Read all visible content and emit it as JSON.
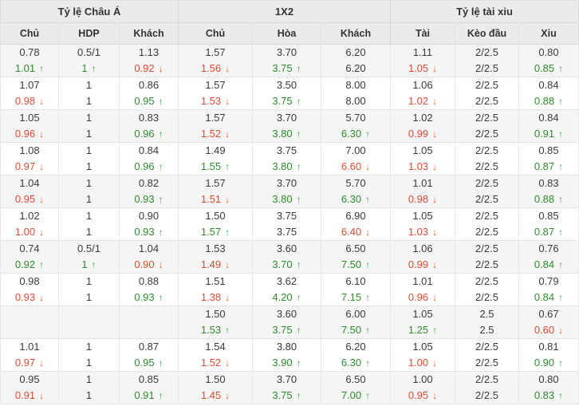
{
  "header": {
    "groups": [
      {
        "label": "Tỷ lệ Châu Á"
      },
      {
        "label": "1X2"
      },
      {
        "label": "Tỷ lệ tài xiu"
      }
    ],
    "columns": [
      "Chủ",
      "HDP",
      "Khách",
      "Chủ",
      "Hòa",
      "Khách",
      "Tài",
      "Kèo đầu",
      "Xiu"
    ]
  },
  "icons": {
    "up_arrow": "↑",
    "down_arrow": "↓"
  },
  "colors": {
    "up_green": "#2e8b2e",
    "down_red": "#e04a33",
    "header_bg": "#ebebeb",
    "stripe_bg": "#f5f5f5",
    "border": "#d9d9d9",
    "text": "#3a3a3a"
  },
  "rows": [
    {
      "cells": [
        {
          "top": "0.78",
          "bottom": "1.01",
          "change": "up"
        },
        {
          "top": "0.5/1",
          "bottom": "1",
          "change": "up"
        },
        {
          "top": "1.13",
          "bottom": "0.92",
          "change": "down"
        },
        {
          "top": "1.57",
          "bottom": "1.56",
          "change": "down"
        },
        {
          "top": "3.70",
          "bottom": "3.75",
          "change": "up"
        },
        {
          "top": "6.20",
          "bottom": "6.20",
          "change": "none"
        },
        {
          "top": "1.11",
          "bottom": "1.05",
          "change": "down"
        },
        {
          "top": "2/2.5",
          "bottom": "2/2.5",
          "change": "none"
        },
        {
          "top": "0.80",
          "bottom": "0.85",
          "change": "up"
        }
      ]
    },
    {
      "cells": [
        {
          "top": "1.07",
          "bottom": "0.98",
          "change": "down"
        },
        {
          "top": "1",
          "bottom": "1",
          "change": "none"
        },
        {
          "top": "0.86",
          "bottom": "0.95",
          "change": "up"
        },
        {
          "top": "1.57",
          "bottom": "1.53",
          "change": "down"
        },
        {
          "top": "3.50",
          "bottom": "3.75",
          "change": "up"
        },
        {
          "top": "8.00",
          "bottom": "8.00",
          "change": "none"
        },
        {
          "top": "1.06",
          "bottom": "1.02",
          "change": "down"
        },
        {
          "top": "2/2.5",
          "bottom": "2/2.5",
          "change": "none"
        },
        {
          "top": "0.84",
          "bottom": "0.88",
          "change": "up"
        }
      ]
    },
    {
      "cells": [
        {
          "top": "1.05",
          "bottom": "0.96",
          "change": "down"
        },
        {
          "top": "1",
          "bottom": "1",
          "change": "none"
        },
        {
          "top": "0.83",
          "bottom": "0.96",
          "change": "up"
        },
        {
          "top": "1.57",
          "bottom": "1.52",
          "change": "down"
        },
        {
          "top": "3.70",
          "bottom": "3.80",
          "change": "up"
        },
        {
          "top": "5.70",
          "bottom": "6.30",
          "change": "up"
        },
        {
          "top": "1.02",
          "bottom": "0.99",
          "change": "down"
        },
        {
          "top": "2/2.5",
          "bottom": "2/2.5",
          "change": "none"
        },
        {
          "top": "0.84",
          "bottom": "0.91",
          "change": "up"
        }
      ]
    },
    {
      "cells": [
        {
          "top": "1.08",
          "bottom": "0.97",
          "change": "down"
        },
        {
          "top": "1",
          "bottom": "1",
          "change": "none"
        },
        {
          "top": "0.84",
          "bottom": "0.96",
          "change": "up"
        },
        {
          "top": "1.49",
          "bottom": "1.55",
          "change": "up"
        },
        {
          "top": "3.75",
          "bottom": "3.80",
          "change": "up"
        },
        {
          "top": "7.00",
          "bottom": "6.60",
          "change": "down"
        },
        {
          "top": "1.05",
          "bottom": "1.03",
          "change": "down"
        },
        {
          "top": "2/2.5",
          "bottom": "2/2.5",
          "change": "none"
        },
        {
          "top": "0.85",
          "bottom": "0.87",
          "change": "up"
        }
      ]
    },
    {
      "cells": [
        {
          "top": "1.04",
          "bottom": "0.95",
          "change": "down"
        },
        {
          "top": "1",
          "bottom": "1",
          "change": "none"
        },
        {
          "top": "0.82",
          "bottom": "0.93",
          "change": "up"
        },
        {
          "top": "1.57",
          "bottom": "1.51",
          "change": "down"
        },
        {
          "top": "3.70",
          "bottom": "3.80",
          "change": "up"
        },
        {
          "top": "5.70",
          "bottom": "6.30",
          "change": "up"
        },
        {
          "top": "1.01",
          "bottom": "0.98",
          "change": "down"
        },
        {
          "top": "2/2.5",
          "bottom": "2/2.5",
          "change": "none"
        },
        {
          "top": "0.83",
          "bottom": "0.88",
          "change": "up"
        }
      ]
    },
    {
      "cells": [
        {
          "top": "1.02",
          "bottom": "1.00",
          "change": "down"
        },
        {
          "top": "1",
          "bottom": "1",
          "change": "none"
        },
        {
          "top": "0.90",
          "bottom": "0.93",
          "change": "up"
        },
        {
          "top": "1.50",
          "bottom": "1.57",
          "change": "up"
        },
        {
          "top": "3.75",
          "bottom": "3.75",
          "change": "none"
        },
        {
          "top": "6.90",
          "bottom": "6.40",
          "change": "down"
        },
        {
          "top": "1.05",
          "bottom": "1.03",
          "change": "down"
        },
        {
          "top": "2/2.5",
          "bottom": "2/2.5",
          "change": "none"
        },
        {
          "top": "0.85",
          "bottom": "0.87",
          "change": "up"
        }
      ]
    },
    {
      "cells": [
        {
          "top": "0.74",
          "bottom": "0.92",
          "change": "up"
        },
        {
          "top": "0.5/1",
          "bottom": "1",
          "change": "up"
        },
        {
          "top": "1.04",
          "bottom": "0.90",
          "change": "down"
        },
        {
          "top": "1.53",
          "bottom": "1.49",
          "change": "down"
        },
        {
          "top": "3.60",
          "bottom": "3.70",
          "change": "up"
        },
        {
          "top": "6.50",
          "bottom": "7.50",
          "change": "up"
        },
        {
          "top": "1.06",
          "bottom": "0.99",
          "change": "down"
        },
        {
          "top": "2/2.5",
          "bottom": "2/2.5",
          "change": "none"
        },
        {
          "top": "0.76",
          "bottom": "0.84",
          "change": "up"
        }
      ]
    },
    {
      "cells": [
        {
          "top": "0.98",
          "bottom": "0.93",
          "change": "down"
        },
        {
          "top": "1",
          "bottom": "1",
          "change": "none"
        },
        {
          "top": "0.88",
          "bottom": "0.93",
          "change": "up"
        },
        {
          "top": "1.51",
          "bottom": "1.38",
          "change": "down"
        },
        {
          "top": "3.62",
          "bottom": "4.20",
          "change": "up"
        },
        {
          "top": "6.10",
          "bottom": "7.15",
          "change": "up"
        },
        {
          "top": "1.01",
          "bottom": "0.96",
          "change": "down"
        },
        {
          "top": "2/2.5",
          "bottom": "2/2.5",
          "change": "none"
        },
        {
          "top": "0.79",
          "bottom": "0.84",
          "change": "up"
        }
      ]
    },
    {
      "cells": [
        {
          "top": "",
          "bottom": "",
          "change": "none"
        },
        {
          "top": "",
          "bottom": "",
          "change": "none"
        },
        {
          "top": "",
          "bottom": "",
          "change": "none"
        },
        {
          "top": "1.50",
          "bottom": "1.53",
          "change": "up"
        },
        {
          "top": "3.60",
          "bottom": "3.75",
          "change": "up"
        },
        {
          "top": "6.00",
          "bottom": "7.50",
          "change": "up"
        },
        {
          "top": "1.05",
          "bottom": "1.25",
          "change": "up"
        },
        {
          "top": "2.5",
          "bottom": "2.5",
          "change": "none"
        },
        {
          "top": "0.67",
          "bottom": "0.60",
          "change": "down"
        }
      ]
    },
    {
      "cells": [
        {
          "top": "1.01",
          "bottom": "0.97",
          "change": "down"
        },
        {
          "top": "1",
          "bottom": "1",
          "change": "none"
        },
        {
          "top": "0.87",
          "bottom": "0.95",
          "change": "up"
        },
        {
          "top": "1.54",
          "bottom": "1.52",
          "change": "down"
        },
        {
          "top": "3.80",
          "bottom": "3.90",
          "change": "up"
        },
        {
          "top": "6.20",
          "bottom": "6.30",
          "change": "up"
        },
        {
          "top": "1.05",
          "bottom": "1.00",
          "change": "down"
        },
        {
          "top": "2/2.5",
          "bottom": "2/2.5",
          "change": "none"
        },
        {
          "top": "0.81",
          "bottom": "0.90",
          "change": "up"
        }
      ]
    },
    {
      "cells": [
        {
          "top": "0.95",
          "bottom": "0.91",
          "change": "down"
        },
        {
          "top": "1",
          "bottom": "1",
          "change": "none"
        },
        {
          "top": "0.85",
          "bottom": "0.91",
          "change": "up"
        },
        {
          "top": "1.50",
          "bottom": "1.45",
          "change": "down"
        },
        {
          "top": "3.70",
          "bottom": "3.75",
          "change": "up"
        },
        {
          "top": "6.50",
          "bottom": "7.00",
          "change": "up"
        },
        {
          "top": "1.00",
          "bottom": "0.95",
          "change": "down"
        },
        {
          "top": "2/2.5",
          "bottom": "2/2.5",
          "change": "none"
        },
        {
          "top": "0.80",
          "bottom": "0.83",
          "change": "up"
        }
      ]
    }
  ]
}
